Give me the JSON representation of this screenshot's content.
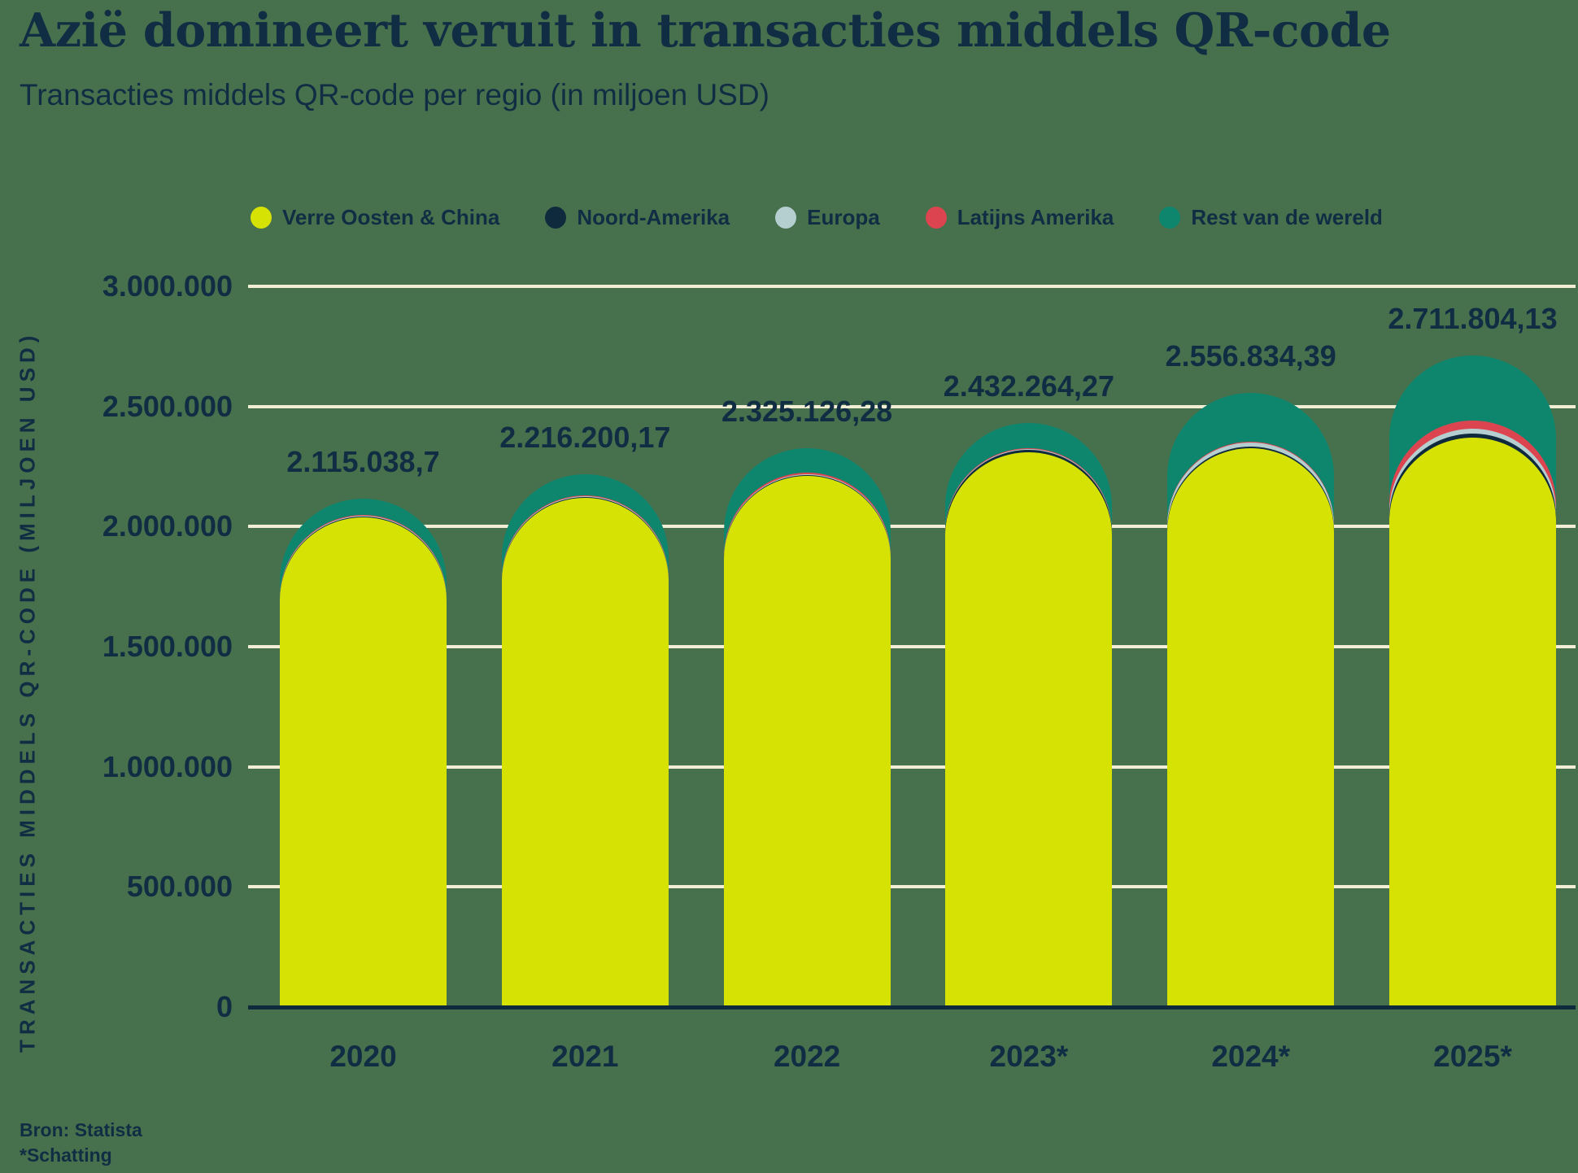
{
  "header": {
    "title": "Azië domineert veruit in transacties middels QR-code",
    "subtitle": "Transacties middels QR-code per regio (in miljoen USD)"
  },
  "footer": {
    "source": "Bron: Statista",
    "footnote": "*Schatting"
  },
  "colors": {
    "background": "#47714D",
    "text": "#102D44",
    "gridline": "#F2EED6",
    "axis_line": "#0E2A3C"
  },
  "chart_data": {
    "type": "bar",
    "stacked": true,
    "rounded_caps": true,
    "title": "Azië domineert veruit in transacties middels QR-code",
    "subtitle": "Transacties middels QR-code per regio (in miljoen USD)",
    "xlabel": "",
    "ylabel": "TRANSACTIES MIDDELS QR-CODE (MILJOEN USD)",
    "ylim": [
      0,
      3000000
    ],
    "grid": true,
    "legend_position": "top",
    "categories": [
      "2020",
      "2021",
      "2022",
      "2023*",
      "2024*",
      "2025*"
    ],
    "series": [
      {
        "name": "Verre Oosten & China",
        "color": "#D6E204",
        "values": [
          2040000,
          2120000,
          2210000,
          2310000,
          2325000,
          2370000
        ]
      },
      {
        "name": "Noord-Amerika",
        "color": "#0E2A3C",
        "values": [
          2500,
          3000,
          4000,
          10000,
          7000,
          17000
        ]
      },
      {
        "name": "Europa",
        "color": "#B5CFD1",
        "values": [
          2000,
          2500,
          3500,
          3000,
          18000,
          20000
        ]
      },
      {
        "name": "Latijns Amerika",
        "color": "#DC4450",
        "values": [
          3500,
          4500,
          6000,
          4000,
          5000,
          34000
        ]
      },
      {
        "name": "Rest van de wereld",
        "color": "#0E866E",
        "values": [
          67038.7,
          86200.17,
          101626.28,
          105264.27,
          201834.39,
          270804.13
        ]
      }
    ],
    "totals": [
      2115038.7,
      2216200.17,
      2325126.28,
      2432264.27,
      2556834.39,
      2711804.13
    ],
    "total_labels": [
      "2.115.038,7",
      "2.216.200,17",
      "2.325.126,28",
      "2.432.264,27",
      "2.556.834,39",
      "2.711.804,13"
    ],
    "yticks": [
      {
        "value": 3000000,
        "label": "3.000.000"
      },
      {
        "value": 2500000,
        "label": "2.500.000"
      },
      {
        "value": 2000000,
        "label": "2.000.000"
      },
      {
        "value": 1500000,
        "label": "1.500.000"
      },
      {
        "value": 1000000,
        "label": "1.000.000"
      },
      {
        "value": 500000,
        "label": "500.000"
      },
      {
        "value": 0,
        "label": "0"
      }
    ]
  }
}
